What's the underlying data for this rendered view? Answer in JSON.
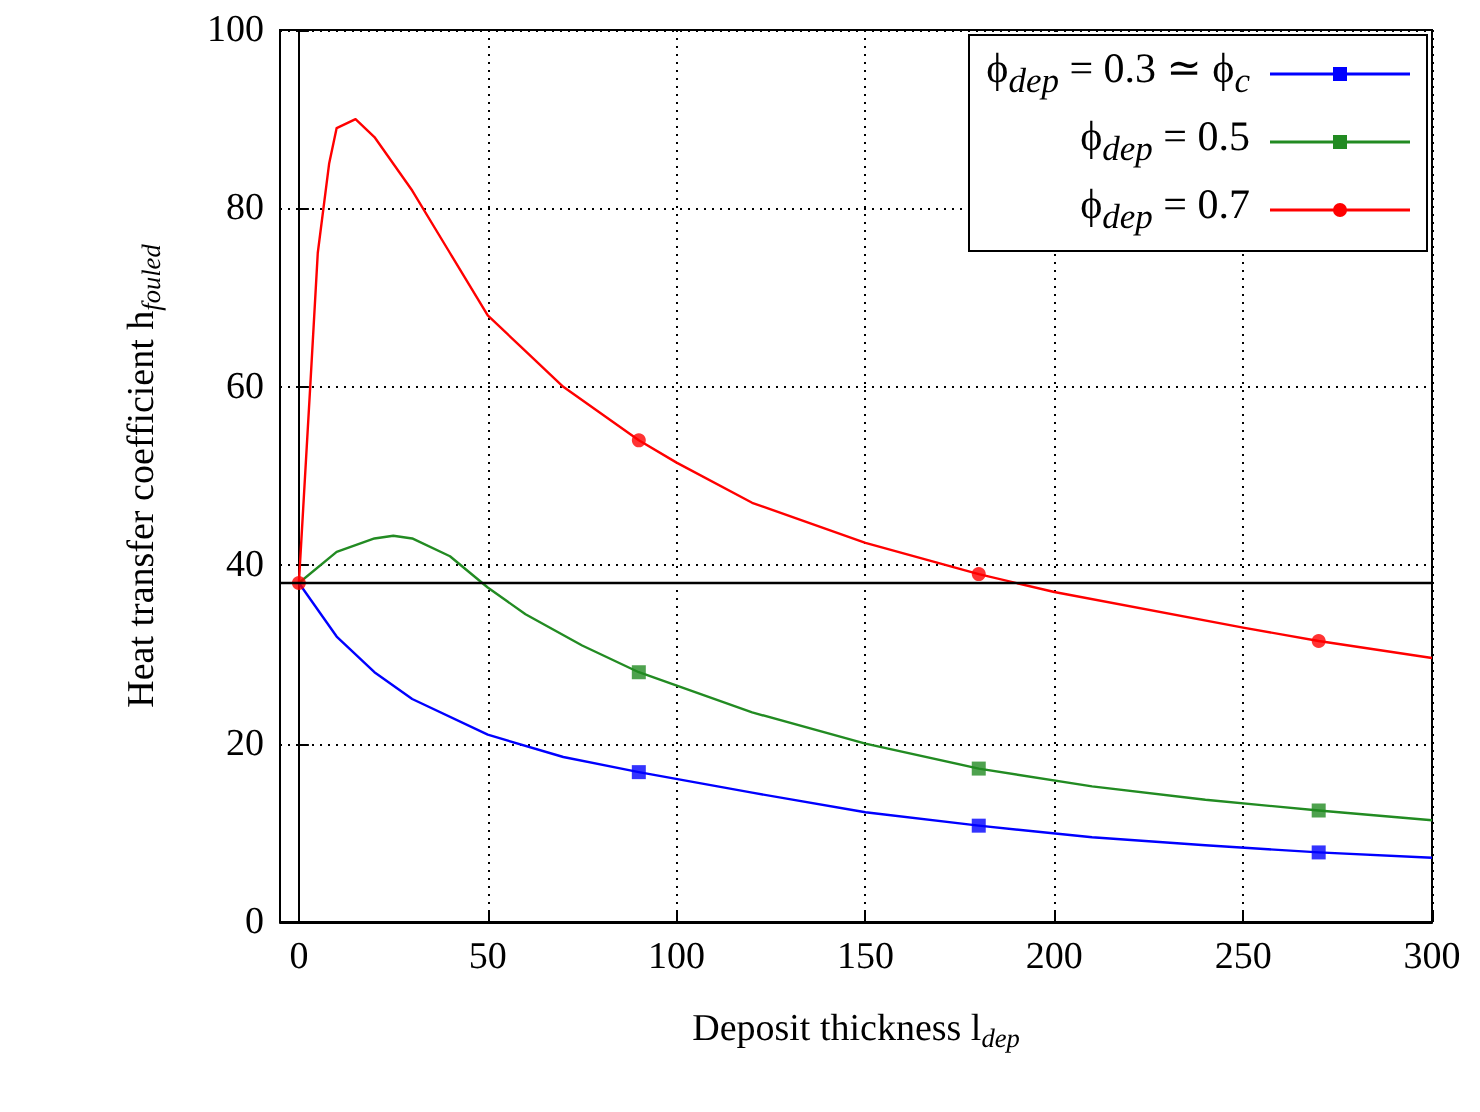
{
  "chart_data": {
    "type": "line",
    "xlabel": "Deposit thickness l$_{dep}$",
    "ylabel": "Heat transfer coefficient h$_{fouled}$",
    "xlim": [
      -5,
      300
    ],
    "xticks": [
      0,
      50,
      100,
      150,
      200,
      250,
      300
    ],
    "ylim": [
      0,
      100
    ],
    "yticks": [
      0,
      20,
      40,
      60,
      80,
      100
    ],
    "grid": true,
    "legend": "top right",
    "ref_lines": [
      {
        "axis": "y",
        "value": 38,
        "color": "#000000",
        "line_style": "solid"
      }
    ],
    "series": [
      {
        "name": "ϕ$_{dep}$ = 0.3 ≃ ϕ$_{c}$",
        "color": "#0000ff",
        "marker": "none",
        "x": [
          0,
          10,
          20,
          30,
          50,
          70,
          90,
          120,
          150,
          180,
          210,
          240,
          270,
          300
        ],
        "values": [
          38,
          32,
          28,
          25,
          21,
          18.5,
          16.8,
          14.5,
          12.3,
          10.8,
          9.5,
          8.6,
          7.8,
          7.2
        ]
      },
      {
        "name": "ϕ$_{dep}$ = 0.5",
        "color": "#228b22",
        "marker": "none",
        "x": [
          0,
          10,
          20,
          25,
          30,
          40,
          50,
          60,
          75,
          90,
          120,
          150,
          180,
          210,
          240,
          270,
          300
        ],
        "values": [
          38,
          41.5,
          43,
          43.3,
          43,
          41,
          37.5,
          34.5,
          31,
          28,
          23.5,
          20,
          17.2,
          15.2,
          13.7,
          12.5,
          11.4
        ]
      },
      {
        "name": "ϕ$_{dep}$ = 0.7",
        "color": "#ff0000",
        "marker": "none",
        "x": [
          0,
          3,
          5,
          8,
          10,
          15,
          20,
          30,
          40,
          50,
          60,
          70,
          80,
          90,
          100,
          120,
          150,
          180,
          200,
          250,
          270,
          300
        ],
        "values": [
          38,
          60,
          75,
          85,
          89,
          90,
          88,
          82,
          75,
          68,
          64,
          60,
          57,
          54,
          51.5,
          47,
          42.5,
          39,
          37,
          33,
          31.5,
          29.6
        ]
      },
      {
        "type": "scatter",
        "color": "#0000ff",
        "marker": "square",
        "x": [
          90,
          180,
          270
        ],
        "values": [
          16.8,
          10.8,
          7.8
        ]
      },
      {
        "type": "scatter",
        "color": "#228b22",
        "marker": "square",
        "x": [
          90,
          180,
          270
        ],
        "values": [
          28,
          17.2,
          12.5
        ]
      },
      {
        "type": "scatter",
        "color": "#ff0000",
        "marker": "circle",
        "x": [
          0,
          90,
          180,
          270
        ],
        "values": [
          38,
          54,
          39,
          31.5
        ]
      }
    ]
  }
}
